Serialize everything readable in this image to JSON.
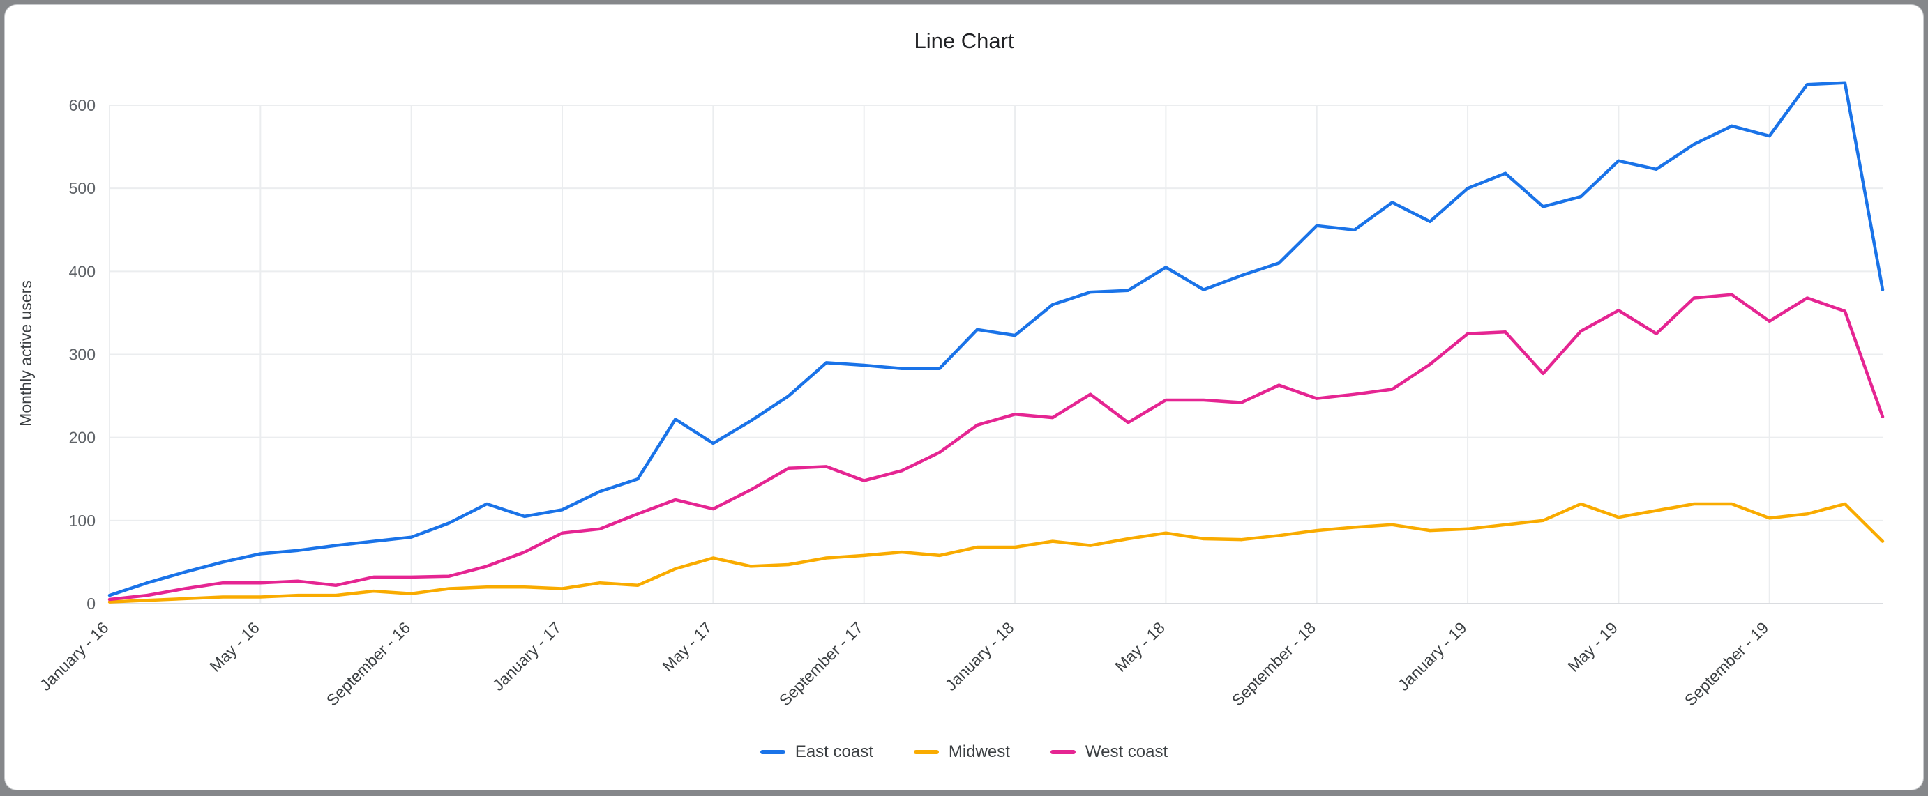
{
  "window": {
    "background_color": "#85878a",
    "card_background_color": "#ffffff"
  },
  "chart_data": {
    "type": "line",
    "title": "Line Chart",
    "xlabel": "",
    "ylabel": "Monthly active users",
    "ylim": [
      0,
      650
    ],
    "yticks": [
      0,
      100,
      200,
      300,
      400,
      500,
      600
    ],
    "grid": true,
    "legend_position": "bottom",
    "n_points": 48,
    "x_tick_indices": [
      0,
      4,
      8,
      12,
      16,
      20,
      24,
      28,
      32,
      36,
      40,
      44
    ],
    "x_tick_labels": [
      "January - 16",
      "May - 16",
      "September - 16",
      "January - 17",
      "May - 17",
      "September - 17",
      "January - 18",
      "May - 18",
      "September - 18",
      "January - 19",
      "May - 19",
      "September - 19"
    ],
    "series": [
      {
        "name": "East coast",
        "color": "#1a73e8",
        "values": [
          10,
          25,
          38,
          50,
          60,
          64,
          70,
          75,
          80,
          97,
          120,
          105,
          113,
          135,
          150,
          222,
          193,
          220,
          250,
          290,
          287,
          283,
          283,
          330,
          323,
          360,
          375,
          377,
          405,
          378,
          395,
          410,
          455,
          450,
          483,
          460,
          500,
          518,
          478,
          490,
          533,
          523,
          553,
          575,
          563,
          625,
          627,
          378
        ]
      },
      {
        "name": "Midwest",
        "color": "#f9ab00",
        "values": [
          2,
          4,
          6,
          8,
          8,
          10,
          10,
          15,
          12,
          18,
          20,
          20,
          18,
          25,
          22,
          42,
          55,
          45,
          47,
          55,
          58,
          62,
          58,
          68,
          68,
          75,
          70,
          78,
          85,
          78,
          77,
          82,
          88,
          92,
          95,
          88,
          90,
          95,
          100,
          120,
          104,
          112,
          120,
          120,
          103,
          108,
          120,
          75
        ]
      },
      {
        "name": "West coast",
        "color": "#e52592",
        "values": [
          5,
          10,
          18,
          25,
          25,
          27,
          22,
          32,
          32,
          33,
          45,
          62,
          85,
          90,
          108,
          125,
          114,
          137,
          163,
          165,
          148,
          160,
          182,
          215,
          228,
          224,
          252,
          218,
          245,
          245,
          242,
          263,
          247,
          252,
          258,
          288,
          325,
          327,
          277,
          328,
          353,
          325,
          368,
          372,
          340,
          368,
          352,
          225
        ]
      }
    ]
  }
}
